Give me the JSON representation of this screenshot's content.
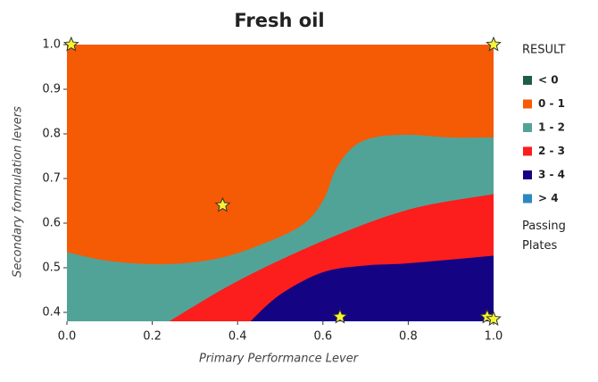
{
  "chart_data": {
    "type": "contour",
    "title": "Fresh oil",
    "x_label": "Primary Performance Lever",
    "y_label": "Secondary formulation levers",
    "legend_title": "RESULT",
    "xlim": [
      0,
      1
    ],
    "ylim": [
      0.38,
      1.0
    ],
    "xticks": [
      {
        "value": 0,
        "label": "0.0"
      },
      0.2,
      0.4,
      0.6,
      0.8,
      {
        "value": 1,
        "label": "1.0"
      }
    ],
    "yticks": [
      {
        "value": 0.4,
        "label": "0.4"
      },
      0.5,
      0.6,
      0.7,
      0.8,
      0.9,
      {
        "value": 1,
        "label": "1.0"
      }
    ],
    "series": [
      {
        "name": "< 0",
        "color": "#1e5c4c",
        "x": [],
        "y": []
      },
      {
        "name": "0 - 1",
        "color": "#f55a05",
        "x": [
          0,
          1
        ],
        "y": [
          1,
          1
        ]
      },
      {
        "name": "1 - 2",
        "color": "#52a397",
        "x": [
          0,
          0.1,
          0.23,
          0.35,
          0.45,
          0.55,
          0.6,
          0.63,
          0.67,
          0.72,
          0.8,
          0.9,
          1.0
        ],
        "y": [
          0.535,
          0.515,
          0.508,
          0.52,
          0.55,
          0.595,
          0.65,
          0.72,
          0.77,
          0.792,
          0.798,
          0.792,
          0.792
        ]
      },
      {
        "name": "2 - 3",
        "color": "#fc1d1d",
        "x": [
          0.24,
          0.4,
          0.6,
          0.8,
          1.0
        ],
        "y": [
          0.38,
          0.47,
          0.56,
          0.63,
          0.665
        ]
      },
      {
        "name": "3 - 4",
        "color": "#140483",
        "x": [
          0.43,
          0.5,
          0.6,
          0.7,
          0.8,
          1.0
        ],
        "y": [
          0.38,
          0.44,
          0.49,
          0.505,
          0.51,
          0.527
        ]
      },
      {
        "name": "> 4",
        "color": "#2c87c2",
        "x": [],
        "y": []
      }
    ],
    "points": {
      "name": "Passing Plates",
      "color": "#f5f534",
      "x": [
        0.01,
        1.0,
        0.365,
        0.64,
        0.985,
        1.0
      ],
      "y": [
        1.0,
        1.0,
        0.64,
        0.39,
        0.39,
        0.385
      ]
    }
  }
}
